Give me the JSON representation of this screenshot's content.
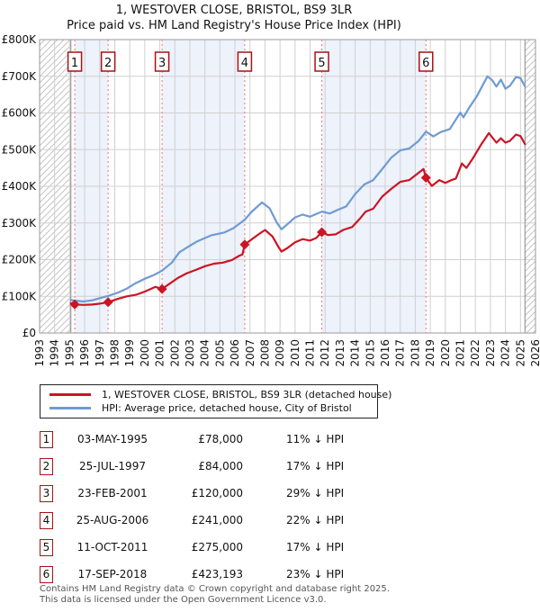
{
  "title": {
    "line1": "1, WESTOVER CLOSE, BRISTOL, BS9 3LR",
    "line2": "Price paid vs. HM Land Registry's House Price Index (HPI)"
  },
  "chart_data": {
    "type": "line",
    "x_axis": {
      "min": 1993,
      "max": 2026,
      "labels": [
        "1993",
        "1994",
        "1995",
        "1996",
        "1997",
        "1998",
        "1999",
        "2000",
        "2001",
        "2002",
        "2003",
        "2004",
        "2005",
        "2006",
        "2007",
        "2008",
        "2009",
        "2010",
        "2011",
        "2012",
        "2013",
        "2014",
        "2015",
        "2016",
        "2017",
        "2018",
        "2019",
        "2020",
        "2021",
        "2022",
        "2023",
        "2024",
        "2025",
        "2026"
      ]
    },
    "y_axis": {
      "min": 0,
      "max": 800000,
      "ticks": [
        {
          "label": "£0",
          "value": 0
        },
        {
          "label": "£100K",
          "value": 100000
        },
        {
          "label": "£200K",
          "value": 200000
        },
        {
          "label": "£300K",
          "value": 300000
        },
        {
          "label": "£400K",
          "value": 400000
        },
        {
          "label": "£500K",
          "value": 500000
        },
        {
          "label": "£600K",
          "value": 600000
        },
        {
          "label": "£700K",
          "value": 700000
        },
        {
          "label": "£800K",
          "value": 800000
        }
      ]
    },
    "data_start_year": 1995.08,
    "data_end_year": 2025.3,
    "colors": {
      "price_line": "#cc1424",
      "hpi_line": "#6f9bd0",
      "event_line": "#f47171",
      "band_fill": "#edf2fb",
      "grid": "#d0d0d0",
      "plot_border": "#999999",
      "hatch": "#c4c4c4",
      "marker_box_border": "#aa1111"
    },
    "series": [
      {
        "name": "1, WESTOVER CLOSE, BRISTOL, BS9 3LR (detached house)",
        "color": "#cc1424",
        "points": [
          [
            1995.08,
            81000
          ],
          [
            1995.34,
            78000
          ],
          [
            1995.9,
            76500
          ],
          [
            1996.5,
            77500
          ],
          [
            1997.0,
            80000
          ],
          [
            1997.56,
            84000
          ],
          [
            1998.2,
            93000
          ],
          [
            1998.8,
            100000
          ],
          [
            1999.4,
            104000
          ],
          [
            2000.0,
            113000
          ],
          [
            2000.7,
            126000
          ],
          [
            2001.0,
            122000
          ],
          [
            2001.15,
            120000
          ],
          [
            2001.6,
            133000
          ],
          [
            2002.2,
            150000
          ],
          [
            2002.8,
            163000
          ],
          [
            2003.4,
            172000
          ],
          [
            2004.0,
            182000
          ],
          [
            2004.6,
            189000
          ],
          [
            2005.2,
            192000
          ],
          [
            2005.8,
            199000
          ],
          [
            2006.3,
            211000
          ],
          [
            2006.5,
            214000
          ],
          [
            2006.65,
            241000
          ],
          [
            2007.1,
            255000
          ],
          [
            2007.6,
            270000
          ],
          [
            2008.0,
            281000
          ],
          [
            2008.5,
            263000
          ],
          [
            2008.9,
            234000
          ],
          [
            2009.1,
            222000
          ],
          [
            2009.5,
            232000
          ],
          [
            2010.0,
            247000
          ],
          [
            2010.5,
            256000
          ],
          [
            2011.0,
            252000
          ],
          [
            2011.4,
            259000
          ],
          [
            2011.78,
            275000
          ],
          [
            2012.2,
            267000
          ],
          [
            2012.7,
            269000
          ],
          [
            2013.2,
            281000
          ],
          [
            2013.8,
            289000
          ],
          [
            2014.3,
            311000
          ],
          [
            2014.7,
            331000
          ],
          [
            2015.2,
            339000
          ],
          [
            2015.8,
            372000
          ],
          [
            2016.4,
            393000
          ],
          [
            2017.0,
            412000
          ],
          [
            2017.6,
            417000
          ],
          [
            2018.2,
            436000
          ],
          [
            2018.55,
            447000
          ],
          [
            2018.71,
            423193
          ],
          [
            2019.1,
            401000
          ],
          [
            2019.6,
            417000
          ],
          [
            2020.0,
            409000
          ],
          [
            2020.4,
            417000
          ],
          [
            2020.7,
            421000
          ],
          [
            2021.1,
            462000
          ],
          [
            2021.4,
            450000
          ],
          [
            2021.8,
            474000
          ],
          [
            2022.4,
            515000
          ],
          [
            2022.9,
            545000
          ],
          [
            2023.4,
            519000
          ],
          [
            2023.7,
            531000
          ],
          [
            2024.0,
            519000
          ],
          [
            2024.3,
            524000
          ],
          [
            2024.7,
            541000
          ],
          [
            2025.0,
            537000
          ],
          [
            2025.3,
            515000
          ]
        ]
      },
      {
        "name": "HPI: Average price, detached house, City of Bristol",
        "color": "#6f9bd0",
        "points": [
          [
            1995.08,
            90000
          ],
          [
            1995.4,
            88000
          ],
          [
            1995.9,
            86000
          ],
          [
            1996.5,
            89000
          ],
          [
            1997.0,
            95000
          ],
          [
            1997.56,
            101000
          ],
          [
            1998.2,
            110000
          ],
          [
            1998.8,
            121000
          ],
          [
            1999.4,
            136000
          ],
          [
            2000.0,
            148000
          ],
          [
            2000.6,
            158000
          ],
          [
            2001.15,
            170000
          ],
          [
            2001.8,
            192000
          ],
          [
            2002.3,
            220000
          ],
          [
            2003.0,
            238000
          ],
          [
            2003.5,
            250000
          ],
          [
            2004.4,
            266000
          ],
          [
            2005.3,
            274000
          ],
          [
            2005.9,
            286000
          ],
          [
            2006.65,
            309000
          ],
          [
            2007.1,
            330000
          ],
          [
            2007.8,
            356000
          ],
          [
            2008.3,
            340000
          ],
          [
            2008.8,
            300000
          ],
          [
            2009.1,
            283000
          ],
          [
            2009.5,
            297000
          ],
          [
            2010.0,
            315000
          ],
          [
            2010.5,
            323000
          ],
          [
            2011.0,
            317000
          ],
          [
            2011.78,
            331000
          ],
          [
            2012.3,
            326000
          ],
          [
            2012.8,
            335000
          ],
          [
            2013.4,
            345000
          ],
          [
            2014.0,
            379000
          ],
          [
            2014.6,
            405000
          ],
          [
            2015.2,
            417000
          ],
          [
            2015.8,
            447000
          ],
          [
            2016.4,
            478000
          ],
          [
            2017.0,
            498000
          ],
          [
            2017.6,
            503000
          ],
          [
            2018.2,
            523000
          ],
          [
            2018.71,
            549000
          ],
          [
            2019.2,
            536000
          ],
          [
            2019.7,
            548000
          ],
          [
            2020.3,
            556000
          ],
          [
            2021.0,
            601000
          ],
          [
            2021.2,
            588000
          ],
          [
            2021.6,
            615000
          ],
          [
            2022.1,
            646000
          ],
          [
            2022.8,
            700000
          ],
          [
            2023.1,
            690000
          ],
          [
            2023.4,
            672000
          ],
          [
            2023.7,
            691000
          ],
          [
            2024.0,
            666000
          ],
          [
            2024.3,
            674000
          ],
          [
            2024.7,
            698000
          ],
          [
            2025.0,
            695000
          ],
          [
            2025.3,
            673000
          ]
        ]
      }
    ],
    "transactions": [
      {
        "num": "1",
        "date": "03-MAY-1995",
        "year": 1995.34,
        "price": 78000
      },
      {
        "num": "2",
        "date": "25-JUL-1997",
        "year": 1997.56,
        "price": 84000
      },
      {
        "num": "3",
        "date": "23-FEB-2001",
        "year": 2001.15,
        "price": 120000
      },
      {
        "num": "4",
        "date": "25-AUG-2006",
        "year": 2006.65,
        "price": 241000
      },
      {
        "num": "5",
        "date": "11-OCT-2011",
        "year": 2011.78,
        "price": 275000
      },
      {
        "num": "6",
        "date": "17-SEP-2018",
        "year": 2018.71,
        "price": 423193
      }
    ],
    "shaded_band_pairs": [
      [
        0,
        1
      ],
      [
        2,
        3
      ],
      [
        4,
        5
      ]
    ],
    "legend_position": "bottom"
  },
  "legend": {
    "items": [
      {
        "label": "1, WESTOVER CLOSE, BRISTOL, BS9 3LR (detached house)",
        "color": "#cc1424"
      },
      {
        "label": "HPI: Average price, detached house, City of Bristol",
        "color": "#6f9bd0"
      }
    ]
  },
  "table": {
    "rows": [
      {
        "num": "1",
        "date": "03-MAY-1995",
        "price": "£78,000",
        "hpi": "11% ↓ HPI"
      },
      {
        "num": "2",
        "date": "25-JUL-1997",
        "price": "£84,000",
        "hpi": "17% ↓ HPI"
      },
      {
        "num": "3",
        "date": "23-FEB-2001",
        "price": "£120,000",
        "hpi": "29% ↓ HPI"
      },
      {
        "num": "4",
        "date": "25-AUG-2006",
        "price": "£241,000",
        "hpi": "22% ↓ HPI"
      },
      {
        "num": "5",
        "date": "11-OCT-2011",
        "price": "£275,000",
        "hpi": "17% ↓ HPI"
      },
      {
        "num": "6",
        "date": "17-SEP-2018",
        "price": "£423,193",
        "hpi": "23% ↓ HPI"
      }
    ]
  },
  "footer": {
    "line1": "Contains HM Land Registry data © Crown copyright and database right 2025.",
    "line2": "This data is licensed under the Open Government Licence v3.0."
  }
}
